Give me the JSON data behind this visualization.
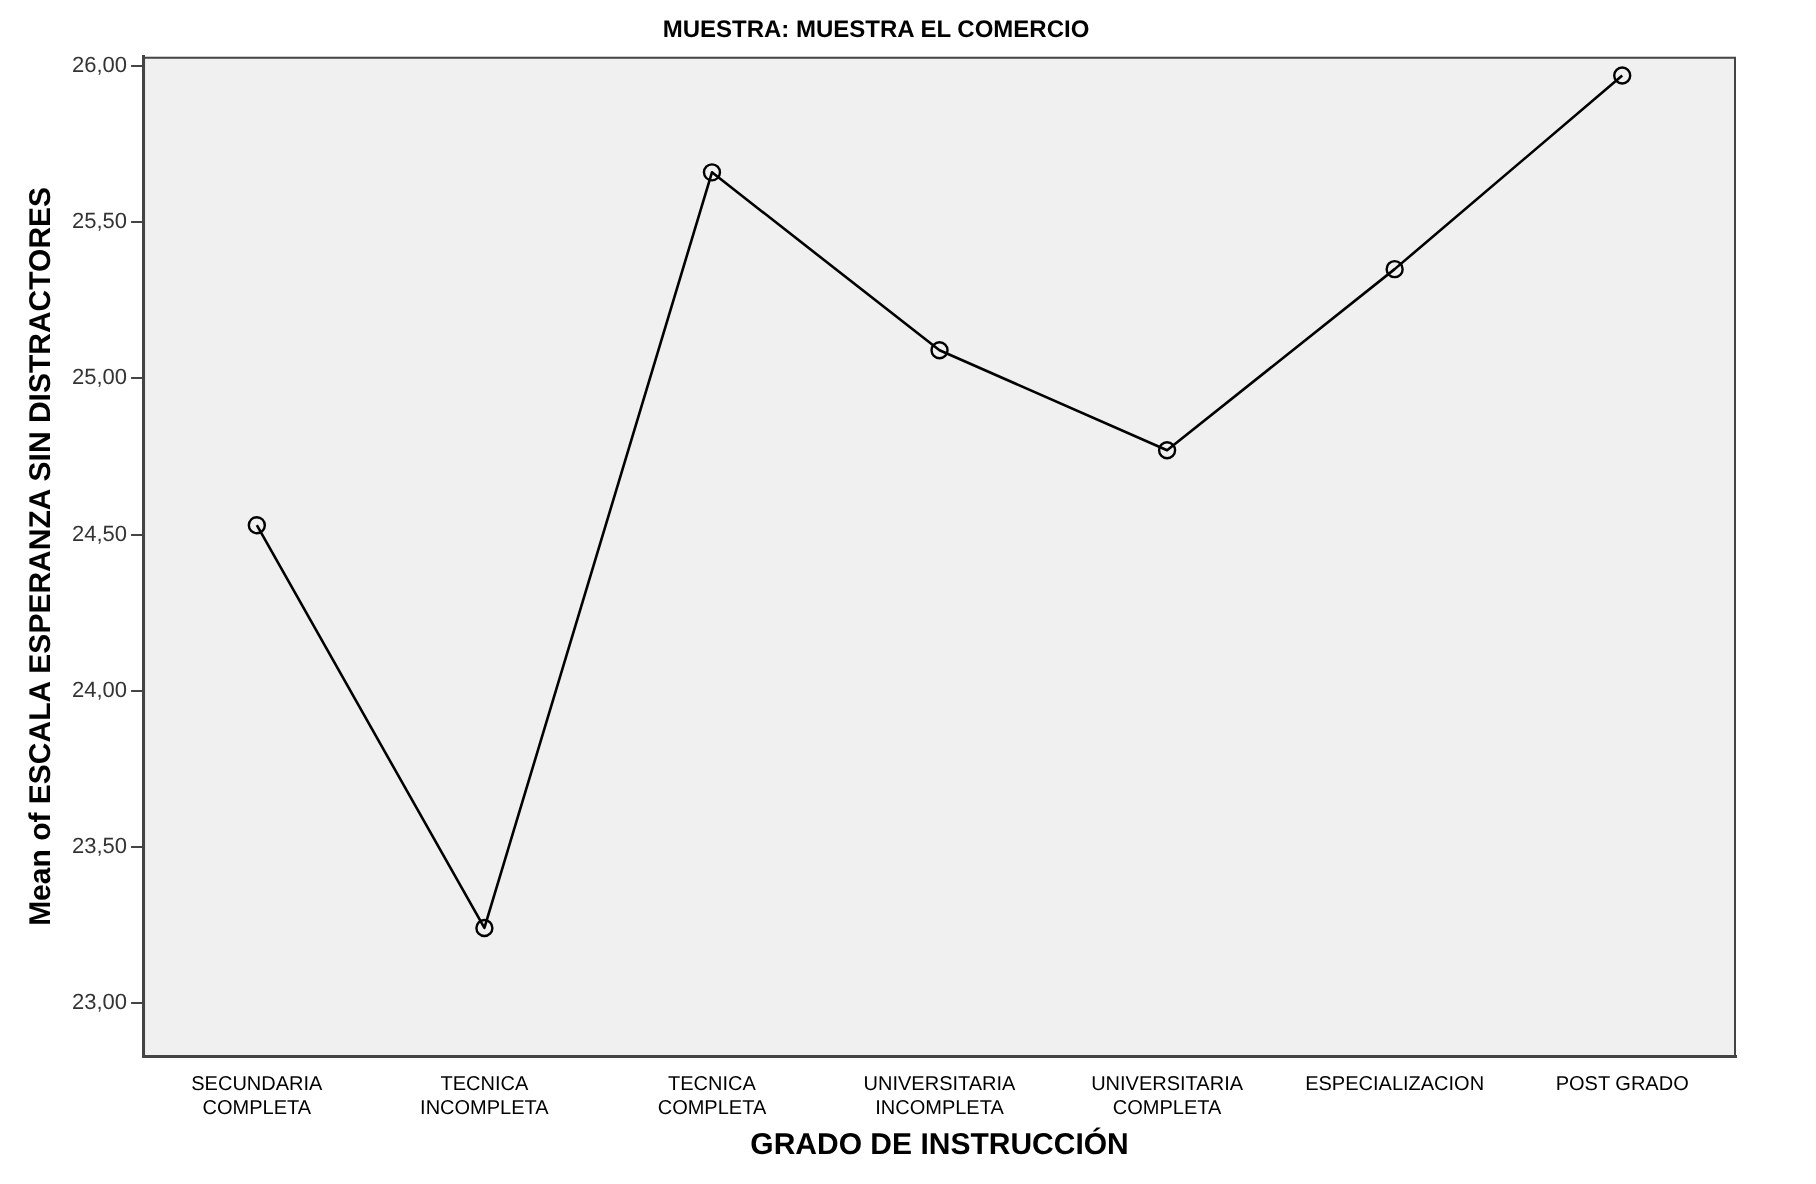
{
  "chart_data": {
    "type": "line",
    "title": "MUESTRA: MUESTRA EL COMERCIO",
    "xlabel": "GRADO DE INSTRUCCIÓN",
    "ylabel": "Mean of ESCALA ESPERANZA SIN DISTRACTORES",
    "categories": [
      "SECUNDARIA COMPLETA",
      "TECNICA INCOMPLETA",
      "TECNICA COMPLETA",
      "UNIVERSITARIA INCOMPLETA",
      "UNIVERSITARIA COMPLETA",
      "ESPECIALIZACION",
      "POST GRADO"
    ],
    "values": [
      24.53,
      23.24,
      25.66,
      25.09,
      24.77,
      25.35,
      25.97
    ],
    "color": "#000000",
    "marker": "circle",
    "line_style": "solid",
    "grid": false,
    "legend": false,
    "ylim": [
      22.83,
      26.03
    ],
    "yticks": [
      {
        "value": 23,
        "label": "23,00"
      },
      {
        "value": 23.5,
        "label": "23,50"
      },
      {
        "value": 24,
        "label": "24,00"
      },
      {
        "value": 24.5,
        "label": "24,50"
      },
      {
        "value": 25,
        "label": "25,00"
      },
      {
        "value": 25.5,
        "label": "25,50"
      },
      {
        "value": 26,
        "label": "26,00"
      }
    ]
  }
}
